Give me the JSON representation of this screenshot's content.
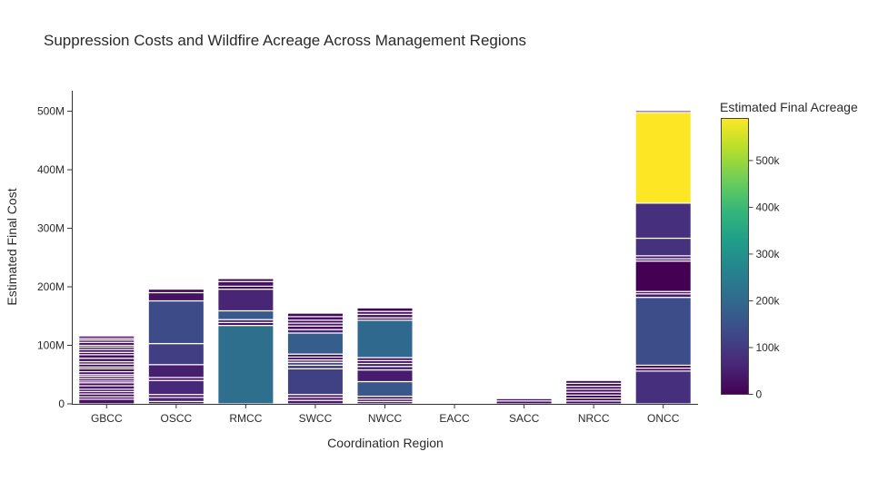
{
  "chart_data": {
    "type": "bar",
    "stacked": true,
    "title": "Suppression Costs and Wildfire Acreage Across Management Regions",
    "xlabel": "Coordination Region",
    "ylabel": "Estimated Final Cost",
    "ylim": [
      0,
      535000000
    ],
    "yticks": [
      {
        "value": 0,
        "label": "0"
      },
      {
        "value": 100000000,
        "label": "100M"
      },
      {
        "value": 200000000,
        "label": "200M"
      },
      {
        "value": 300000000,
        "label": "300M"
      },
      {
        "value": 400000000,
        "label": "400M"
      },
      {
        "value": 500000000,
        "label": "500M"
      }
    ],
    "categories": [
      "GBCC",
      "OSCC",
      "RMCC",
      "SWCC",
      "NWCC",
      "EACC",
      "SACC",
      "NRCC",
      "ONCC"
    ],
    "stacks": [
      {
        "region": "GBCC",
        "segments": [
          {
            "cost": 8000000,
            "acreage": 30000
          },
          {
            "cost": 4000000,
            "acreage": 5000
          },
          {
            "cost": 5000000,
            "acreage": 20000
          },
          {
            "cost": 4000000,
            "acreage": 8000
          },
          {
            "cost": 4000000,
            "acreage": 15000
          },
          {
            "cost": 6000000,
            "acreage": 40000
          },
          {
            "cost": 5000000,
            "acreage": 10000
          },
          {
            "cost": 3000000,
            "acreage": 4000
          },
          {
            "cost": 4000000,
            "acreage": 25000
          },
          {
            "cost": 4000000,
            "acreage": 12000
          },
          {
            "cost": 3000000,
            "acreage": 3000
          },
          {
            "cost": 5000000,
            "acreage": 35000
          },
          {
            "cost": 5000000,
            "acreage": 9000
          },
          {
            "cost": 3000000,
            "acreage": 6000
          },
          {
            "cost": 5000000,
            "acreage": 18000
          },
          {
            "cost": 4000000,
            "acreage": 7000
          },
          {
            "cost": 6000000,
            "acreage": 45000
          },
          {
            "cost": 6000000,
            "acreage": 22000
          },
          {
            "cost": 4000000,
            "acreage": 5000
          },
          {
            "cost": 5000000,
            "acreage": 28000
          },
          {
            "cost": 4000000,
            "acreage": 11000
          },
          {
            "cost": 3000000,
            "acreage": 3000
          },
          {
            "cost": 5000000,
            "acreage": 14000
          },
          {
            "cost": 4000000,
            "acreage": 6000
          },
          {
            "cost": 3000000,
            "acreage": 4000
          },
          {
            "cost": 4000000,
            "acreage": 9000
          }
        ]
      },
      {
        "region": "OSCC",
        "segments": [
          {
            "cost": 4000000,
            "acreage": 30000
          },
          {
            "cost": 7000000,
            "acreage": 60000
          },
          {
            "cost": 5000000,
            "acreage": 15000
          },
          {
            "cost": 24000000,
            "acreage": 65000
          },
          {
            "cost": 5000000,
            "acreage": 20000
          },
          {
            "cost": 22000000,
            "acreage": 50000
          },
          {
            "cost": 36000000,
            "acreage": 110000
          },
          {
            "cost": 73000000,
            "acreage": 135000
          },
          {
            "cost": 14000000,
            "acreage": 30000
          },
          {
            "cost": 6000000,
            "acreage": 8000
          }
        ]
      },
      {
        "region": "RMCC",
        "segments": [
          {
            "cost": 134000000,
            "acreage": 215000
          },
          {
            "cost": 5000000,
            "acreage": 20000
          },
          {
            "cost": 5000000,
            "acreage": 50000
          },
          {
            "cost": 15000000,
            "acreage": 165000
          },
          {
            "cost": 37000000,
            "acreage": 60000
          },
          {
            "cost": 5000000,
            "acreage": 10000
          },
          {
            "cost": 8000000,
            "acreage": 25000
          },
          {
            "cost": 5000000,
            "acreage": 7000
          }
        ]
      },
      {
        "region": "SWCC",
        "segments": [
          {
            "cost": 6000000,
            "acreage": 40000
          },
          {
            "cost": 5000000,
            "acreage": 15000
          },
          {
            "cost": 5000000,
            "acreage": 30000
          },
          {
            "cost": 44000000,
            "acreage": 115000
          },
          {
            "cost": 6000000,
            "acreage": 100000
          },
          {
            "cost": 5000000,
            "acreage": 140000
          },
          {
            "cost": 4000000,
            "acreage": 20000
          },
          {
            "cost": 5000000,
            "acreage": 55000
          },
          {
            "cost": 5000000,
            "acreage": 12000
          },
          {
            "cost": 36000000,
            "acreage": 175000
          },
          {
            "cost": 6000000,
            "acreage": 60000
          },
          {
            "cost": 6000000,
            "acreage": 20000
          },
          {
            "cost": 5000000,
            "acreage": 35000
          },
          {
            "cost": 5000000,
            "acreage": 10000
          },
          {
            "cost": 6000000,
            "acreage": 25000
          },
          {
            "cost": 6000000,
            "acreage": 8000
          }
        ]
      },
      {
        "region": "NWCC",
        "segments": [
          {
            "cost": 4000000,
            "acreage": 60000
          },
          {
            "cost": 4000000,
            "acreage": 15000
          },
          {
            "cost": 5000000,
            "acreage": 40000
          },
          {
            "cost": 25000000,
            "acreage": 160000
          },
          {
            "cost": 20000000,
            "acreage": 45000
          },
          {
            "cost": 6000000,
            "acreage": 70000
          },
          {
            "cost": 5000000,
            "acreage": 20000
          },
          {
            "cost": 5000000,
            "acreage": 35000
          },
          {
            "cost": 5000000,
            "acreage": 10000
          },
          {
            "cost": 64000000,
            "acreage": 200000
          },
          {
            "cost": 4000000,
            "acreage": 15000
          },
          {
            "cost": 6000000,
            "acreage": 50000
          },
          {
            "cost": 5000000,
            "acreage": 20000
          },
          {
            "cost": 6000000,
            "acreage": 8000
          }
        ]
      },
      {
        "region": "EACC",
        "segments": [
          {
            "cost": 1000000,
            "acreage": 5000
          }
        ]
      },
      {
        "region": "SACC",
        "segments": [
          {
            "cost": 5000000,
            "acreage": 15000
          },
          {
            "cost": 4000000,
            "acreage": 40000
          }
        ]
      },
      {
        "region": "NRCC",
        "segments": [
          {
            "cost": 5000000,
            "acreage": 20000
          },
          {
            "cost": 5000000,
            "acreage": 8000
          },
          {
            "cost": 5000000,
            "acreage": 15000
          },
          {
            "cost": 5000000,
            "acreage": 5000
          },
          {
            "cost": 5000000,
            "acreage": 25000
          },
          {
            "cost": 5000000,
            "acreage": 10000
          },
          {
            "cost": 5000000,
            "acreage": 18000
          },
          {
            "cost": 5000000,
            "acreage": 30000
          }
        ]
      },
      {
        "region": "ONCC",
        "segments": [
          {
            "cost": 56000000,
            "acreage": 80000
          },
          {
            "cost": 5000000,
            "acreage": 20000
          },
          {
            "cost": 5000000,
            "acreage": 10000
          },
          {
            "cost": 116000000,
            "acreage": 140000
          },
          {
            "cost": 6000000,
            "acreage": 40000
          },
          {
            "cost": 4000000,
            "acreage": 15000
          },
          {
            "cost": 52000000,
            "acreage": 0
          },
          {
            "cost": 4000000,
            "acreage": 60000
          },
          {
            "cost": 5000000,
            "acreage": 40000
          },
          {
            "cost": 30000000,
            "acreage": 85000
          },
          {
            "cost": 60000000,
            "acreage": 80000
          },
          {
            "cost": 155000000,
            "acreage": 590000
          },
          {
            "cost": 3000000,
            "acreage": 10000
          }
        ]
      }
    ],
    "colorbar": {
      "title": "Estimated Final Acreage",
      "colorscale": "Viridis",
      "range": [
        0,
        590000
      ],
      "ticks": [
        {
          "value": 0,
          "label": "0"
        },
        {
          "value": 100000,
          "label": "100k"
        },
        {
          "value": 200000,
          "label": "200k"
        },
        {
          "value": 300000,
          "label": "300k"
        },
        {
          "value": 400000,
          "label": "400k"
        },
        {
          "value": 500000,
          "label": "500k"
        }
      ]
    },
    "legend": "none",
    "grid": false
  }
}
